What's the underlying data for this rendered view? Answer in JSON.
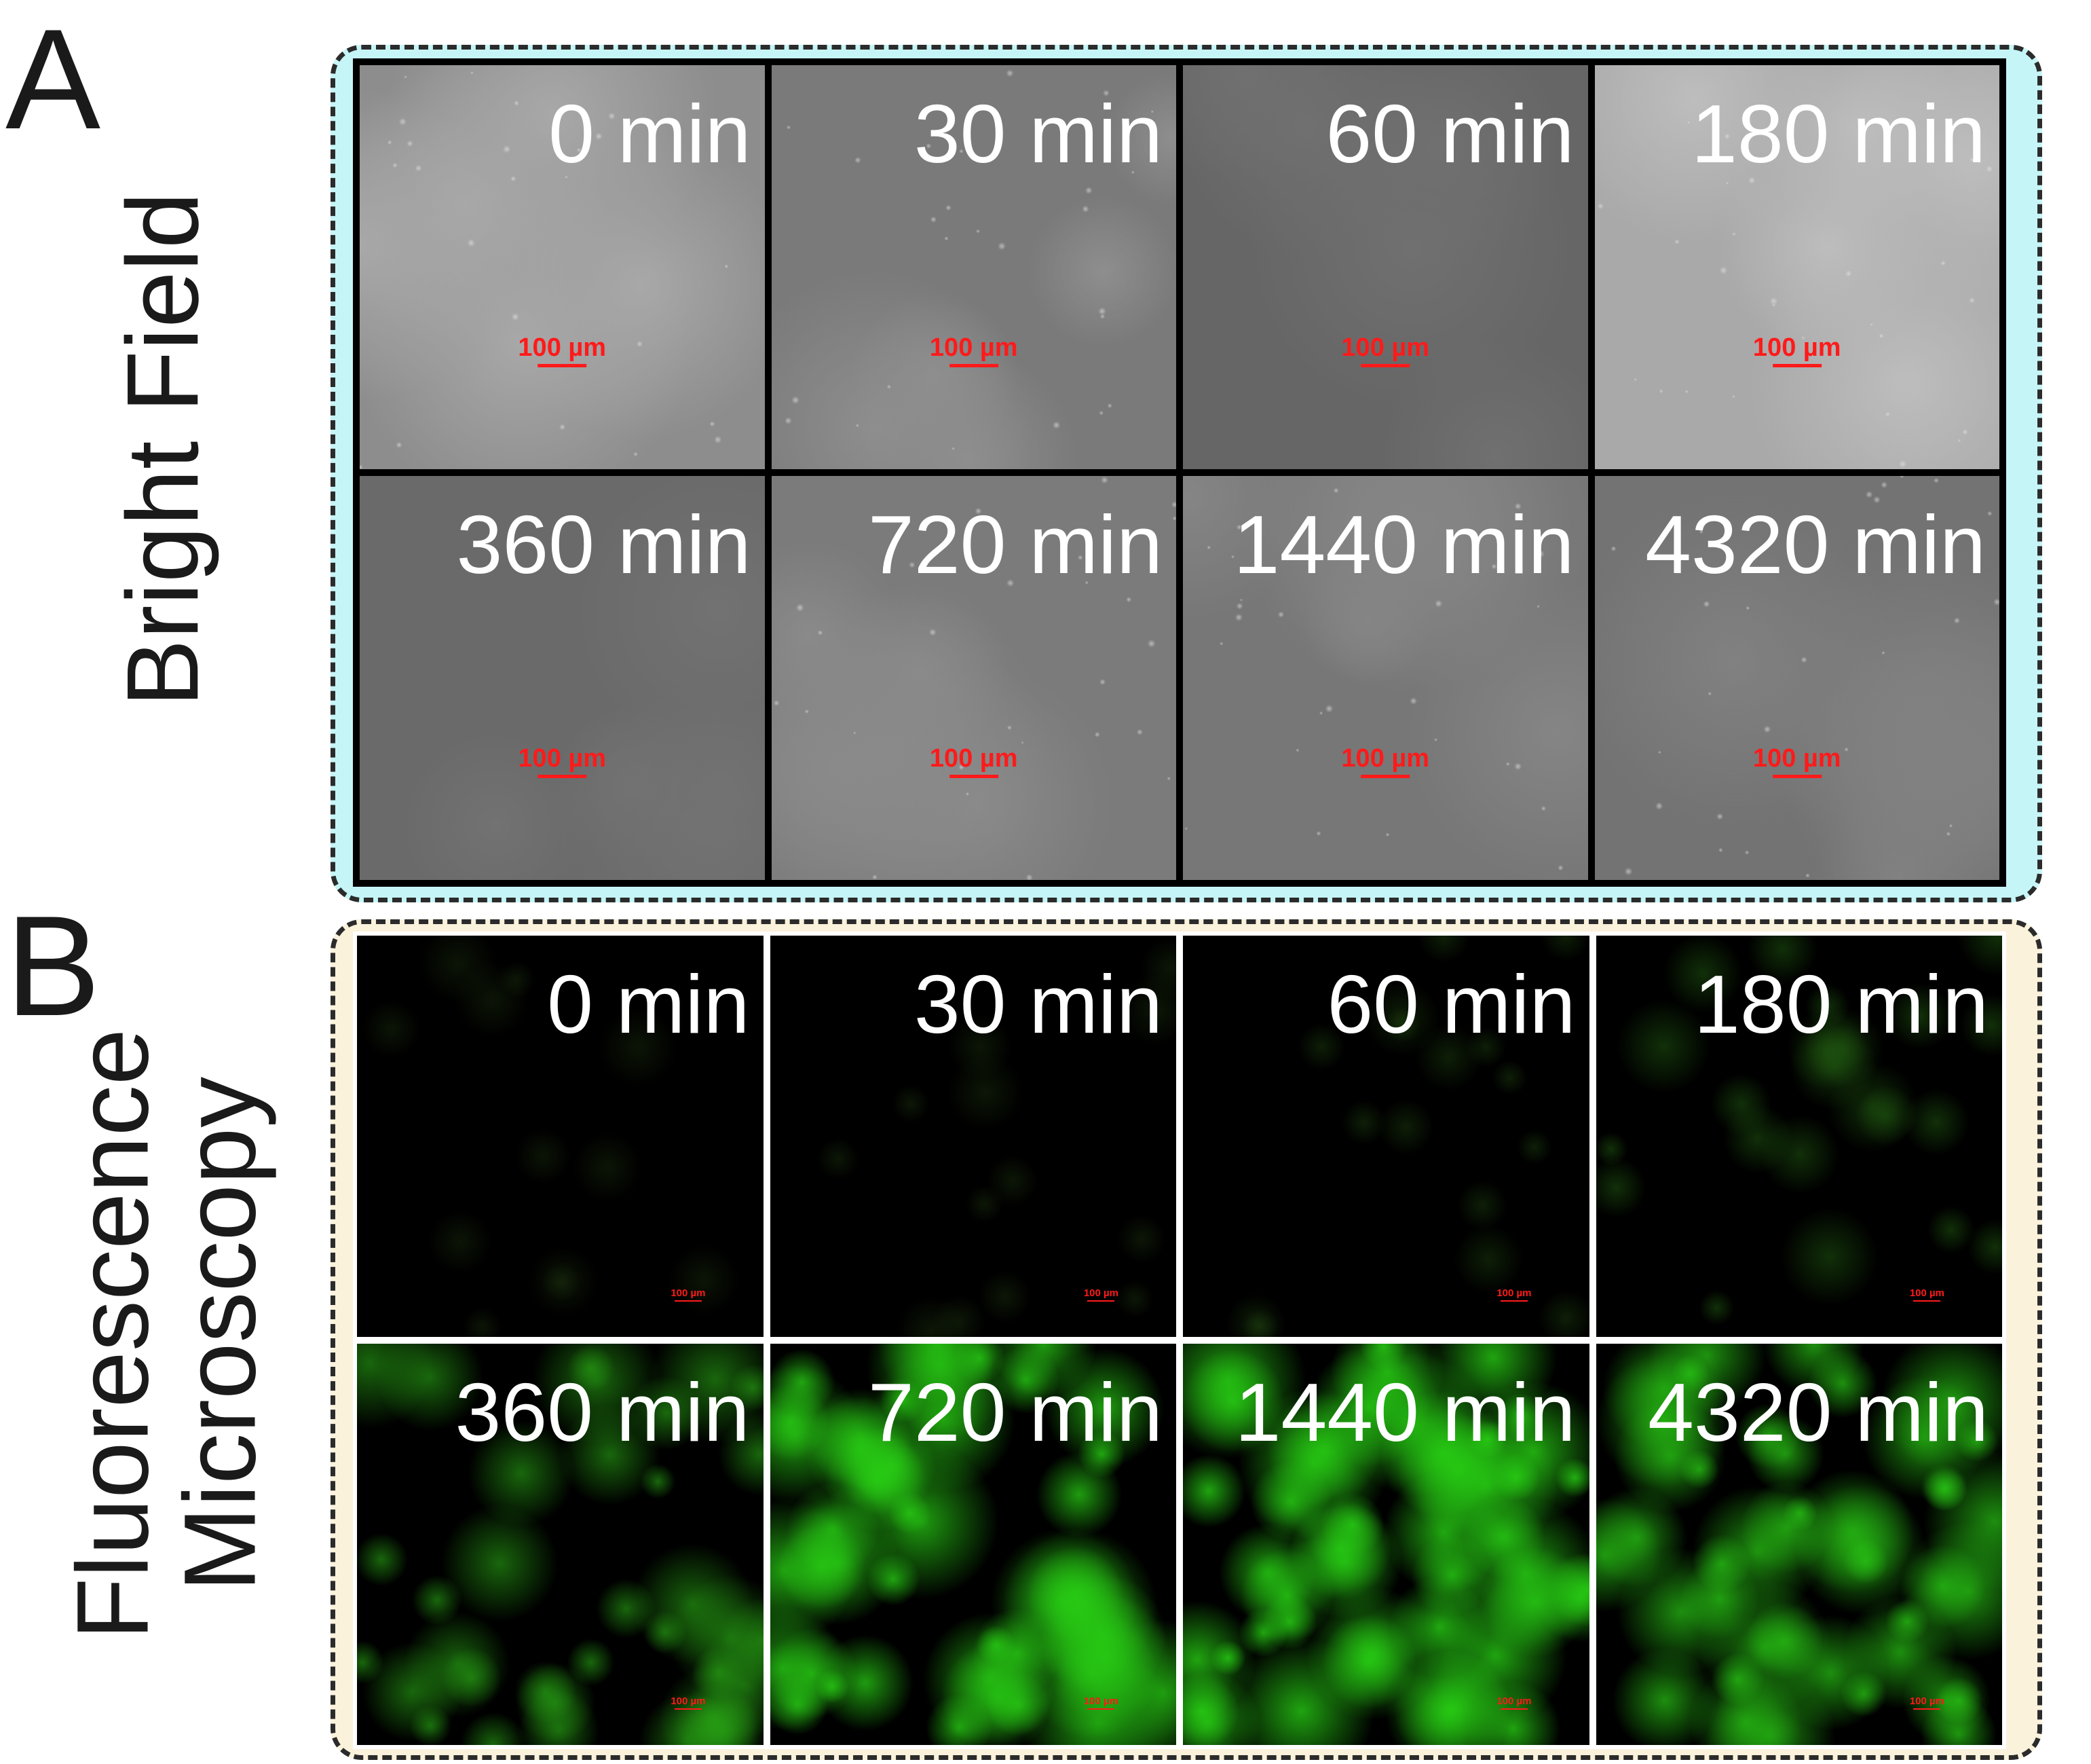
{
  "panel_a": {
    "letter": "A",
    "side_label": "Bright Field",
    "frame_color": "#c6f5f7",
    "tiles": [
      {
        "time": "0 min",
        "scale": "100 µm",
        "base": "#8d8d8d",
        "spot": "#a8a8a8",
        "dots": true
      },
      {
        "time": "30 min",
        "scale": "100 µm",
        "base": "#7a7a7a",
        "spot": "#8e8e8e",
        "dots": true
      },
      {
        "time": "60 min",
        "scale": "100 µm",
        "base": "#666666",
        "spot": "#707070",
        "dots": false
      },
      {
        "time": "180 min",
        "scale": "100 µm",
        "base": "#a9a9a9",
        "spot": "#bdbdbd",
        "dots": true
      },
      {
        "time": "360 min",
        "scale": "100 µm",
        "base": "#6a6a6a",
        "spot": "#727272",
        "dots": false
      },
      {
        "time": "720 min",
        "scale": "100 µm",
        "base": "#7b7b7b",
        "spot": "#8a8a8a",
        "dots": true
      },
      {
        "time": "1440 min",
        "scale": "100 µm",
        "base": "#777777",
        "spot": "#858585",
        "dots": true
      },
      {
        "time": "4320 min",
        "scale": "100 µm",
        "base": "#737373",
        "spot": "#818181",
        "dots": true
      }
    ]
  },
  "panel_b": {
    "letter": "B",
    "side_label_line1": "Fluorescence",
    "side_label_line2": "Microscopy",
    "frame_color": "#fbf2dc",
    "tiles": [
      {
        "time": "0 min",
        "scale": "100 µm",
        "intensity": 0.06
      },
      {
        "time": "30 min",
        "scale": "100 µm",
        "intensity": 0.08
      },
      {
        "time": "60 min",
        "scale": "100 µm",
        "intensity": 0.16
      },
      {
        "time": "180 min",
        "scale": "100 µm",
        "intensity": 0.3
      },
      {
        "time": "360 min",
        "scale": "100 µm",
        "intensity": 0.62
      },
      {
        "time": "720 min",
        "scale": "100 µm",
        "intensity": 0.85
      },
      {
        "time": "1440 min",
        "scale": "100 µm",
        "intensity": 0.88
      },
      {
        "time": "4320 min",
        "scale": "100 µm",
        "intensity": 0.8
      }
    ]
  }
}
